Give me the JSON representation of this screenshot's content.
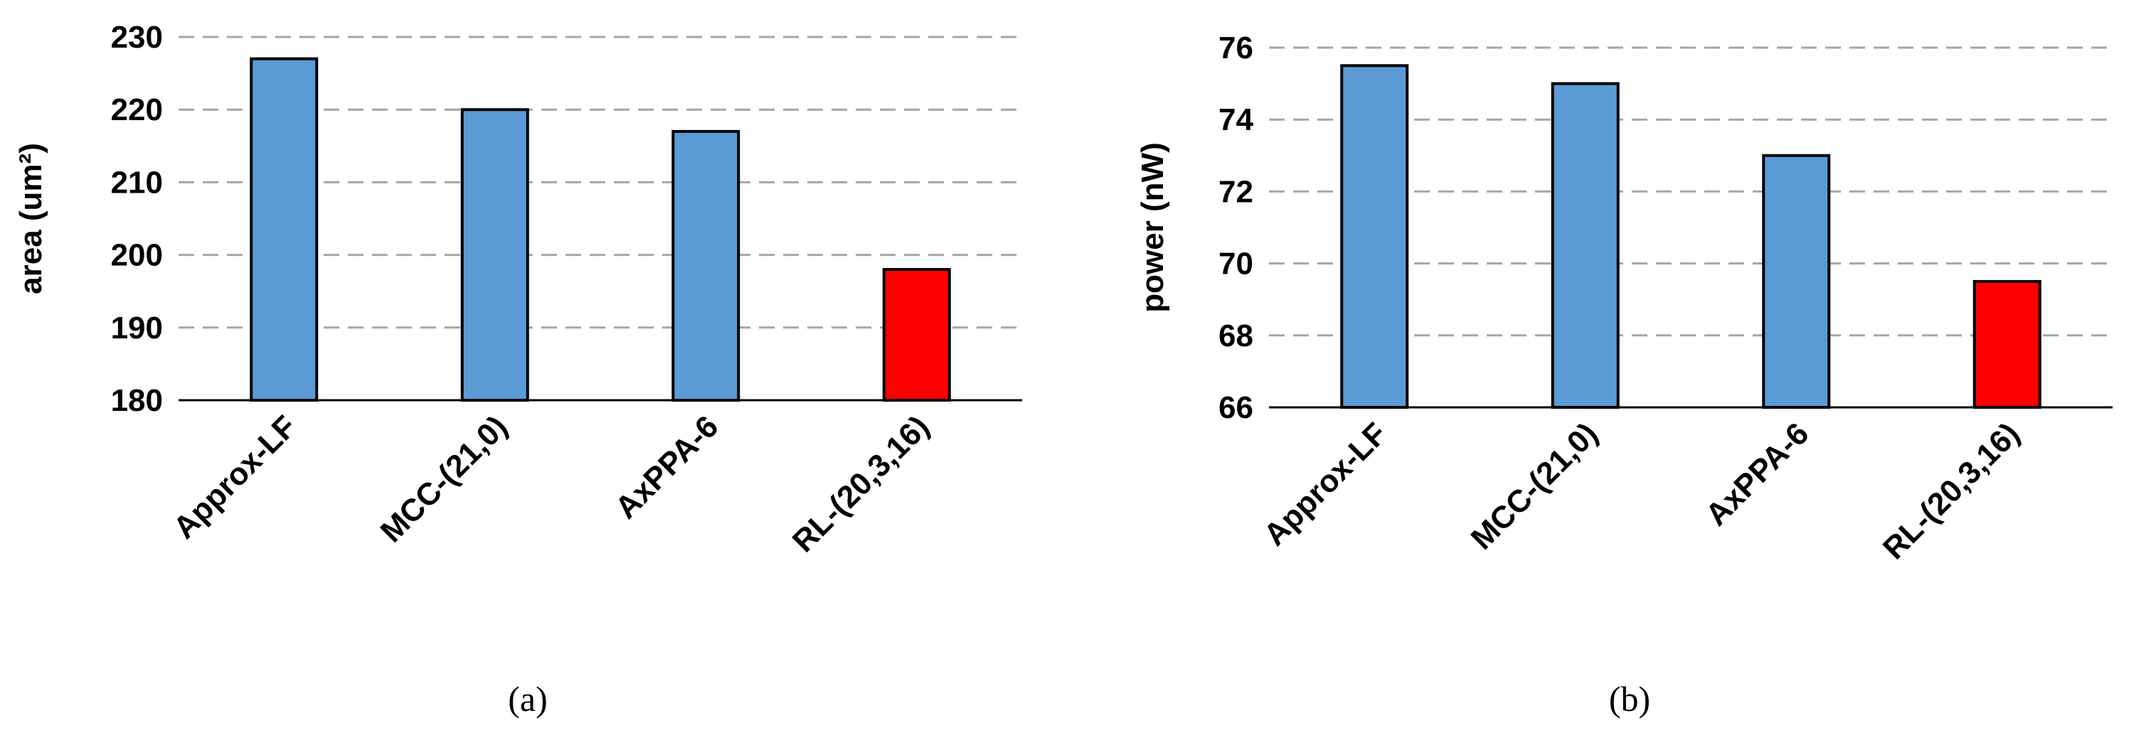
{
  "chart_data": [
    {
      "type": "bar",
      "caption": "(a)",
      "y_label": "area (um²)",
      "categories": [
        "Approx-LF",
        "MCC-(21,0)",
        "AxPPA-6",
        "RL-(20,3,16)"
      ],
      "values": [
        227,
        220,
        217,
        198
      ],
      "colors": [
        "#5b9bd5",
        "#5b9bd5",
        "#5b9bd5",
        "#ff0000"
      ],
      "ylim": [
        180,
        230
      ],
      "yticks": [
        180,
        190,
        200,
        210,
        220,
        230
      ],
      "grid": true
    },
    {
      "type": "bar",
      "caption": "(b)",
      "y_label": "power (nW)",
      "categories": [
        "Approx-LF",
        "MCC-(21,0)",
        "AxPPA-6",
        "RL-(20,3,16)"
      ],
      "values": [
        75.5,
        75,
        73,
        69.5
      ],
      "colors": [
        "#5b9bd5",
        "#5b9bd5",
        "#5b9bd5",
        "#ff0000"
      ],
      "ylim": [
        66,
        76
      ],
      "yticks": [
        66,
        68,
        70,
        72,
        74,
        76
      ],
      "grid": true
    }
  ]
}
